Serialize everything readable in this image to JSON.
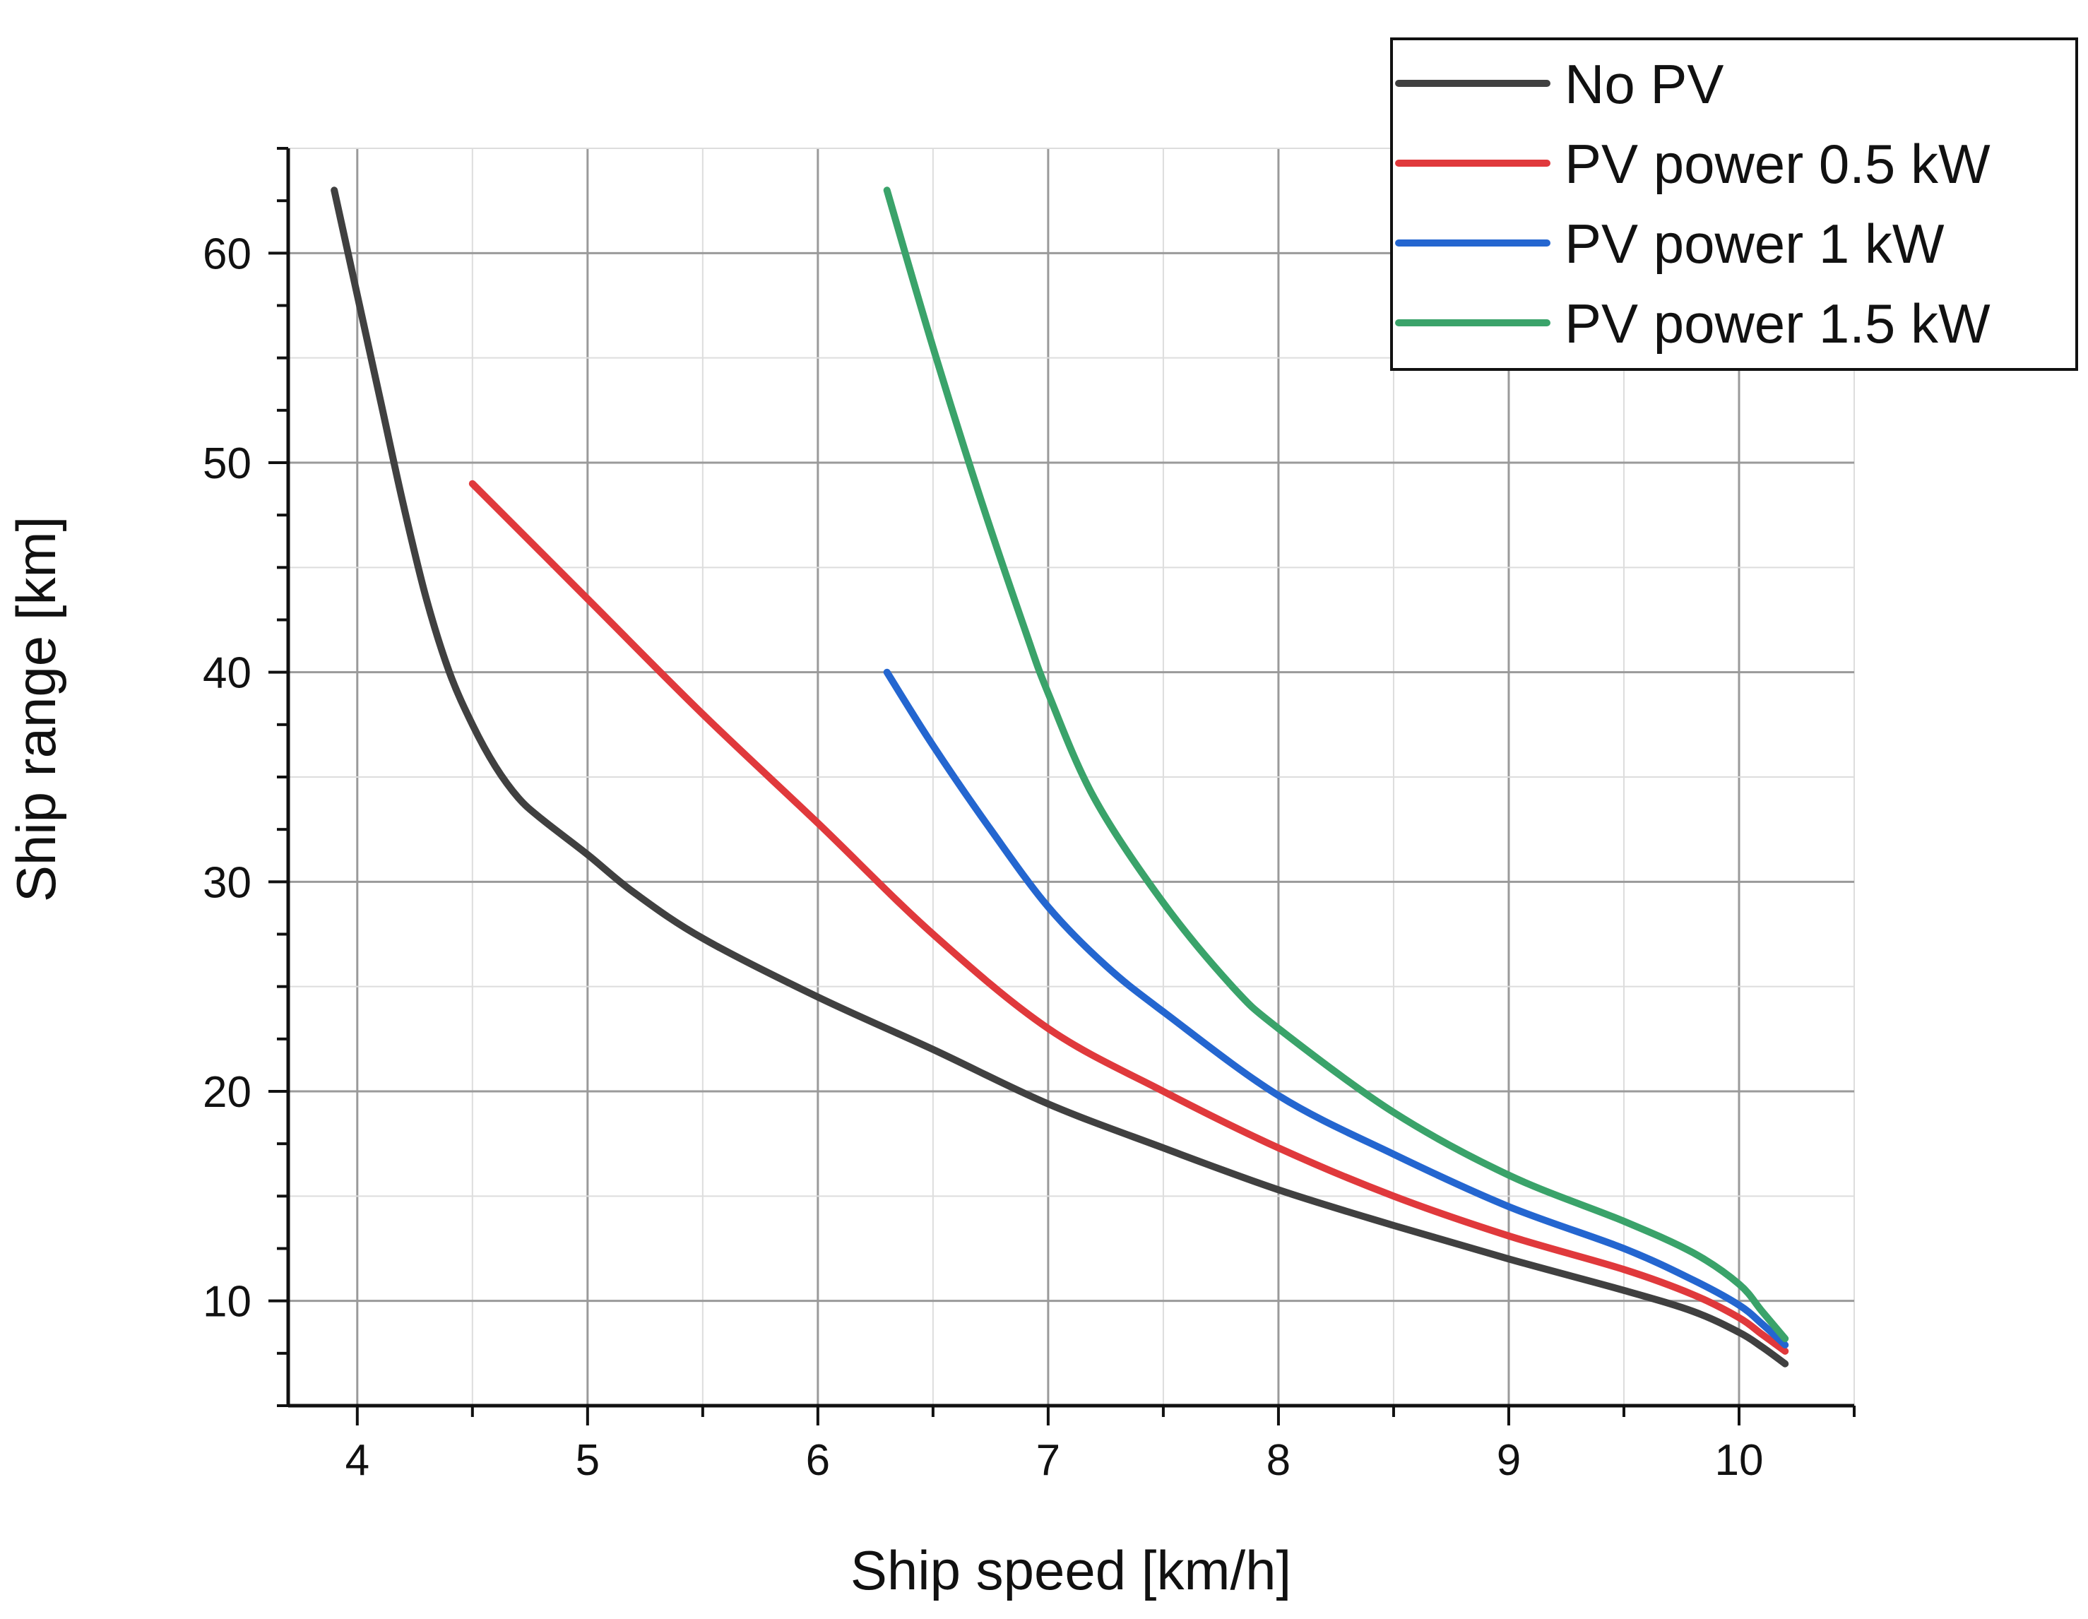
{
  "chart_data": {
    "type": "line",
    "title": "",
    "xlabel": "Ship speed [km/h]",
    "ylabel": "Ship range [km]",
    "xlim": [
      3.7,
      10.5
    ],
    "ylim": [
      5,
      65
    ],
    "xticks": [
      4,
      5,
      6,
      7,
      8,
      9,
      10
    ],
    "yticks": [
      10,
      20,
      30,
      40,
      50,
      60
    ],
    "grid": true,
    "legend_position": "top-right",
    "series": [
      {
        "name": "No PV",
        "color": "#404040",
        "x": [
          3.9,
          4.0,
          4.1,
          4.2,
          4.3,
          4.4,
          4.5,
          4.6,
          4.7,
          4.8,
          5.0,
          5.2,
          5.5,
          6.0,
          6.5,
          7.0,
          7.5,
          8.0,
          8.5,
          9.0,
          9.5,
          9.8,
          10.0,
          10.1,
          10.2
        ],
        "y": [
          63,
          58,
          53,
          48,
          43.5,
          40,
          37.5,
          35.5,
          34,
          33,
          31.3,
          29.5,
          27.3,
          24.5,
          22,
          19.4,
          17.3,
          15.3,
          13.6,
          12,
          10.5,
          9.5,
          8.5,
          7.8,
          7.0
        ]
      },
      {
        "name": "PV power 0.5 kW",
        "color": "#e0393c",
        "x": [
          4.5,
          5.0,
          5.5,
          6.0,
          6.5,
          7.0,
          7.5,
          8.0,
          8.5,
          9.0,
          9.5,
          9.8,
          10.0,
          10.1,
          10.2
        ],
        "y": [
          49,
          43.5,
          38,
          32.8,
          27.5,
          23,
          20,
          17.3,
          15,
          13.1,
          11.5,
          10.3,
          9.2,
          8.4,
          7.6
        ]
      },
      {
        "name": "PV power 1 kW",
        "color": "#2466d0",
        "x": [
          6.3,
          6.5,
          6.75,
          7.0,
          7.25,
          7.5,
          8.0,
          8.5,
          9.0,
          9.5,
          9.8,
          10.0,
          10.1,
          10.2
        ],
        "y": [
          40,
          36.5,
          32.5,
          28.8,
          26,
          23.8,
          19.8,
          17,
          14.5,
          12.5,
          11.0,
          9.8,
          8.9,
          7.9
        ]
      },
      {
        "name": "PV power 1.5 kW",
        "color": "#3aa36a",
        "x": [
          6.3,
          6.5,
          6.7,
          6.9,
          7.0,
          7.2,
          7.5,
          7.8,
          8.0,
          8.5,
          9.0,
          9.5,
          9.8,
          10.0,
          10.1,
          10.2
        ],
        "y": [
          63,
          55.5,
          48.5,
          42,
          39,
          34,
          29,
          25,
          23,
          19,
          16,
          13.8,
          12.3,
          10.8,
          9.5,
          8.2
        ]
      }
    ]
  }
}
